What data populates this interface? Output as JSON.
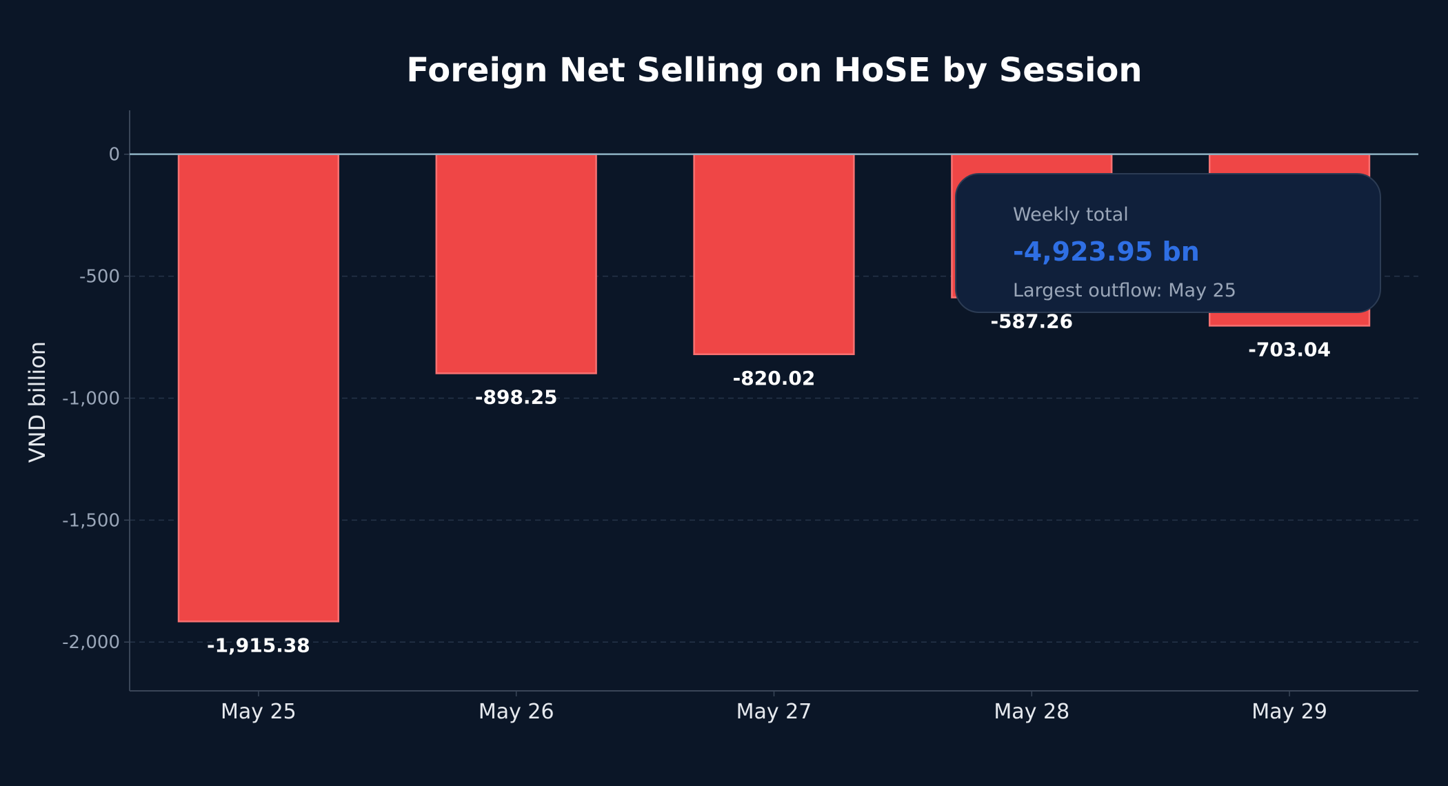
{
  "chart_data": {
    "type": "bar",
    "title": "Foreign Net Selling on HoSE by Session",
    "ylabel": "VND billion",
    "xlabel": "",
    "categories": [
      "May 25",
      "May 26",
      "May 27",
      "May 28",
      "May 29"
    ],
    "values": [
      -1915.38,
      -898.25,
      -820.02,
      -587.26,
      -703.04
    ],
    "data_labels": [
      "-1,915.38",
      "-898.25",
      "-820.02",
      "-587.26",
      "-703.04"
    ],
    "ylim": [
      -2200,
      180
    ],
    "yticks": [
      0,
      -500,
      -1000,
      -1500,
      -2000
    ],
    "ytick_labels": [
      "0",
      "-500",
      "-1,000",
      "-1,500",
      "-2,000"
    ],
    "grid": true,
    "annotation": {
      "label": "Weekly total",
      "value": "-4,923.95 bn",
      "note": "Largest outflow: May 25"
    }
  },
  "colors": {
    "background": "#0b1627",
    "bar_fill": "#ef4646",
    "bar_edge": "#f87171",
    "zero_line": "#8fb3c4",
    "grid": "#263449",
    "axis": "#3a4658",
    "annotation_bg": "#10203b",
    "annotation_border": "#2c3c54",
    "annotation_value": "#2f6fe4"
  }
}
